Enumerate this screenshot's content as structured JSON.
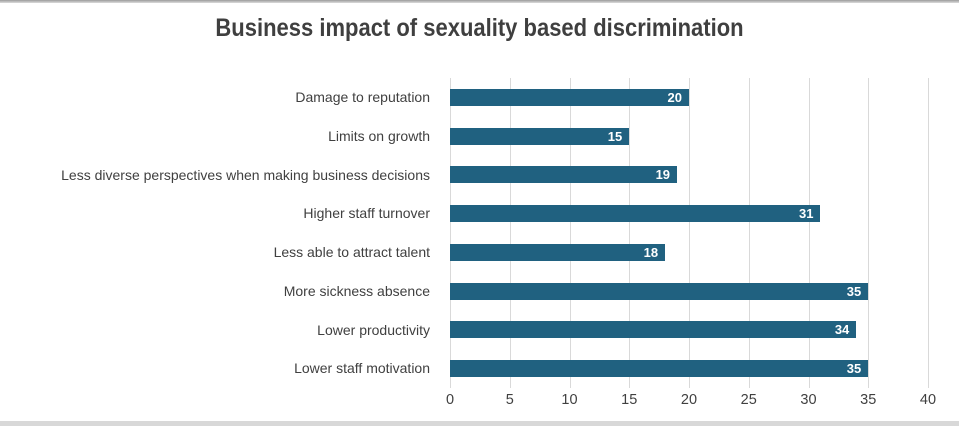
{
  "title": "Business impact of sexuality based discrimination",
  "colors": {
    "bar": "#206180",
    "gridline": "#d9d9d9",
    "title_text": "#3f3f3f",
    "axis_text": "#404040",
    "data_label_text": "#ffffff",
    "top_border": "#a6a6a6",
    "bottom_strip": "#d8d8d8",
    "background": "#ffffff"
  },
  "chart_data": {
    "type": "bar",
    "orientation": "horizontal",
    "title": "Business impact of sexuality based discrimination",
    "categories": [
      "Damage to reputation",
      "Limits on growth",
      "Less diverse perspectives when making business decisions",
      "Higher staff turnover",
      "Less able to attract talent",
      "More sickness absence",
      "Lower productivity",
      "Lower staff motivation"
    ],
    "values": [
      20,
      15,
      19,
      31,
      18,
      35,
      34,
      35
    ],
    "xlabel": "",
    "ylabel": "",
    "xlim": [
      0,
      40
    ],
    "xticks": [
      0,
      5,
      10,
      15,
      20,
      25,
      30,
      35,
      40
    ],
    "grid": true,
    "legend": false,
    "data_labels": "inside-end"
  }
}
